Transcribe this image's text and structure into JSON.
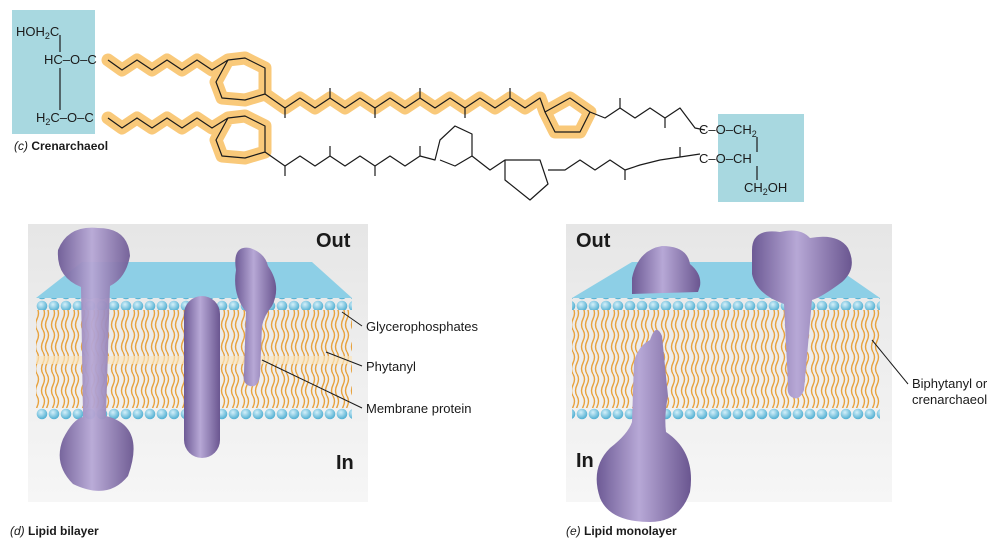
{
  "colors": {
    "chain_highlight": "#f9c97a",
    "head_box": "#a8d8e0",
    "lipid_head": "#6cc0dc",
    "lipid_tail": "#e8a23d",
    "protein": "#8a78b0"
  },
  "panel_c": {
    "caption_letter": "(c)",
    "caption_title": "Crenarchaeol",
    "left_head": {
      "row1": "HOH",
      "row1_sub": "2",
      "row1_tail": "C",
      "row2": "HC–O–C",
      "row3": "H",
      "row3_sub": "2",
      "row3_tail": "C–O–C"
    },
    "right_head": {
      "row1": "C–O–CH",
      "row1_sub": "2",
      "row2": "C–O–CH",
      "row3": "CH",
      "row3_sub": "2",
      "row3_tail": "OH"
    }
  },
  "panel_d": {
    "caption_letter": "(d)",
    "caption_title": "Lipid bilayer",
    "out_label": "Out",
    "in_label": "In",
    "labels": {
      "glycerophosphates": "Glycerophosphates",
      "phytanyl": "Phytanyl",
      "membrane_protein": "Membrane protein"
    }
  },
  "panel_e": {
    "caption_letter": "(e)",
    "caption_title": "Lipid monolayer",
    "out_label": "Out",
    "in_label": "In",
    "labels": {
      "biphytanyl_line1": "Biphytanyl or",
      "biphytanyl_line2": "crenarchaeol"
    }
  }
}
